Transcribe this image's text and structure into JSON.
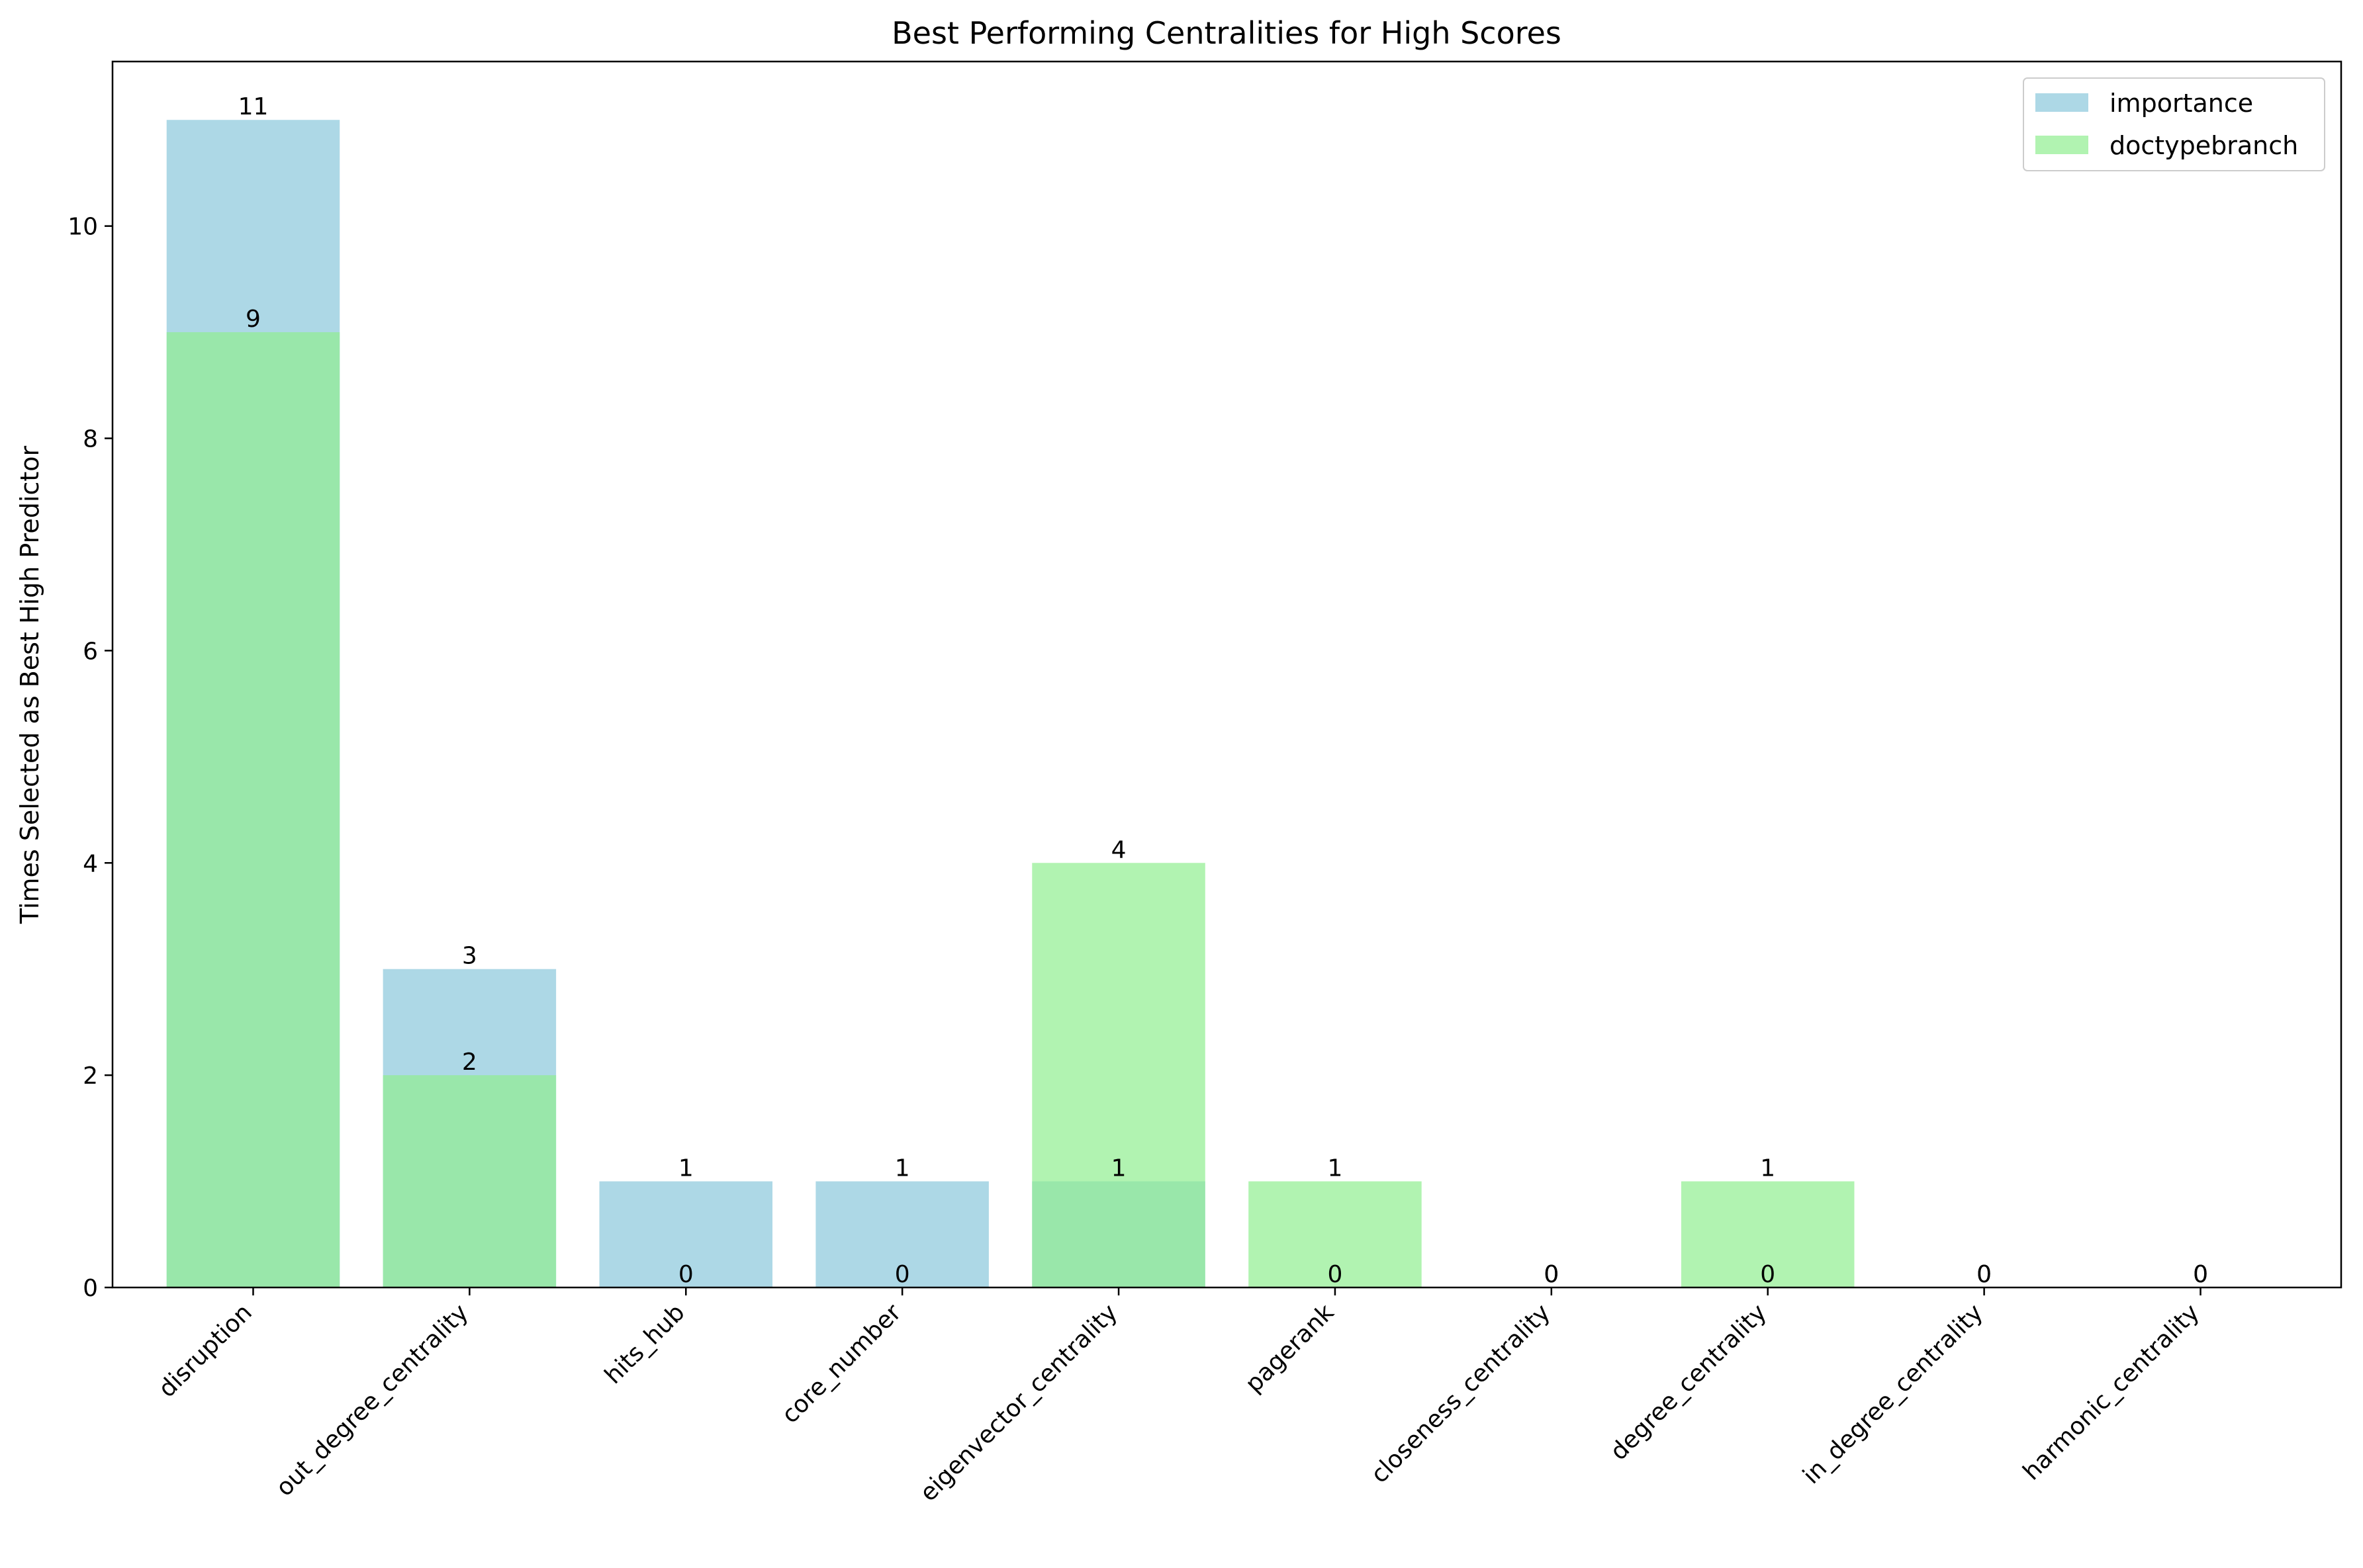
{
  "chart_data": {
    "type": "bar",
    "title": "Best Performing Centralities for High Scores",
    "xlabel": "",
    "ylabel": "Times Selected as Best High Predictor",
    "ylim": [
      0,
      11.55
    ],
    "yticks": [
      0,
      2,
      4,
      6,
      8,
      10
    ],
    "grid": false,
    "legend_position": "top-right",
    "categories": [
      "disruption",
      "out_degree_centrality",
      "hits_hub",
      "core_number",
      "eigenvector_centrality",
      "pagerank",
      "closeness_centrality",
      "degree_centrality",
      "in_degree_centrality",
      "harmonic_centrality"
    ],
    "series": [
      {
        "name": "importance",
        "color": "#add8e6",
        "values": [
          11,
          3,
          1,
          1,
          1,
          0,
          0,
          0,
          0,
          0
        ]
      },
      {
        "name": "doctypebranch",
        "color": "#90ee90",
        "opacity": 0.7,
        "values": [
          9,
          2,
          0,
          0,
          4,
          1,
          0,
          1,
          0,
          0
        ]
      }
    ]
  }
}
